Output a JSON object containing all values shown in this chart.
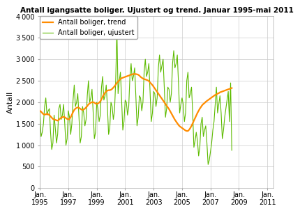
{
  "title": "Antall igangsatte boliger. Ujustert og trend. Januar 1995-mai 2011",
  "ylabel": "Antall",
  "ylim": [
    0,
    4000
  ],
  "yticks": [
    0,
    500,
    1000,
    1500,
    2000,
    2500,
    3000,
    3500,
    4000
  ],
  "color_trend": "#FF8C00",
  "color_unadjusted": "#5DBB00",
  "legend_trend": "Antall boliger, trend",
  "legend_unadjusted": "Antall boliger, ujustert",
  "bg_color": "#ffffff",
  "grid_color": "#cccccc",
  "x_tick_years": [
    1995,
    1997,
    1999,
    2001,
    2003,
    2005,
    2007,
    2009,
    2011
  ],
  "unadjusted": [
    1800,
    1200,
    1300,
    1500,
    1900,
    2100,
    1700,
    1800,
    1850,
    1300,
    900,
    1050,
    1700,
    1400,
    1050,
    1250,
    1850,
    1950,
    1600,
    1700,
    1950,
    1500,
    1000,
    1150,
    1800,
    1650,
    1250,
    1500,
    2050,
    2400,
    1900,
    2000,
    2200,
    1650,
    1050,
    1200,
    1900,
    1750,
    1450,
    1600,
    2150,
    2500,
    2000,
    2100,
    2300,
    1750,
    1150,
    1300,
    2000,
    1850,
    1550,
    1700,
    2350,
    2600,
    2050,
    2150,
    2400,
    1900,
    1250,
    1400,
    2000,
    1900,
    1600,
    1800,
    2500,
    3700,
    2200,
    2500,
    2700,
    2050,
    1350,
    1550,
    2050,
    2000,
    1700,
    1900,
    2600,
    2900,
    2500,
    2600,
    2800,
    2150,
    1450,
    1650,
    2150,
    2100,
    1800,
    2000,
    2700,
    3000,
    2600,
    2700,
    2900,
    2250,
    1550,
    1750,
    2250,
    2200,
    1900,
    2100,
    2800,
    3100,
    2700,
    2850,
    3000,
    2350,
    1650,
    1850,
    2350,
    2300,
    2000,
    2200,
    2900,
    3200,
    2800,
    2900,
    3100,
    2450,
    1750,
    1950,
    2100,
    1950,
    1550,
    1750,
    2500,
    2700,
    2100,
    2200,
    2350,
    1750,
    950,
    1100,
    1300,
    1100,
    750,
    950,
    1500,
    1650,
    1200,
    1350,
    1450,
    1050,
    550,
    650,
    850,
    1050,
    1350,
    1550,
    1950,
    2350,
    1750,
    1950,
    2150,
    1750,
    1150,
    1350,
    1650,
    1850,
    2050,
    2250,
    1550,
    2450,
    880
  ],
  "trend": [
    1800,
    1780,
    1750,
    1720,
    1710,
    1720,
    1730,
    1720,
    1700,
    1670,
    1640,
    1610,
    1600,
    1590,
    1580,
    1570,
    1590,
    1620,
    1640,
    1650,
    1660,
    1650,
    1630,
    1610,
    1600,
    1610,
    1650,
    1710,
    1770,
    1820,
    1850,
    1870,
    1880,
    1870,
    1850,
    1830,
    1820,
    1830,
    1850,
    1880,
    1910,
    1950,
    1970,
    1990,
    2000,
    2000,
    1990,
    1970,
    1960,
    1970,
    1990,
    2020,
    2070,
    2130,
    2180,
    2220,
    2250,
    2270,
    2280,
    2280,
    2290,
    2310,
    2340,
    2370,
    2410,
    2450,
    2480,
    2510,
    2540,
    2560,
    2570,
    2580,
    2590,
    2600,
    2610,
    2620,
    2630,
    2640,
    2650,
    2655,
    2660,
    2655,
    2650,
    2640,
    2620,
    2590,
    2570,
    2550,
    2540,
    2530,
    2520,
    2510,
    2490,
    2460,
    2430,
    2400,
    2360,
    2320,
    2280,
    2240,
    2200,
    2160,
    2120,
    2080,
    2040,
    2000,
    1960,
    1920,
    1880,
    1840,
    1790,
    1740,
    1690,
    1640,
    1590,
    1550,
    1510,
    1470,
    1440,
    1420,
    1400,
    1380,
    1360,
    1340,
    1330,
    1330,
    1360,
    1400,
    1450,
    1510,
    1570,
    1630,
    1690,
    1750,
    1800,
    1850,
    1890,
    1930,
    1960,
    1980,
    2010,
    2030,
    2050,
    2070,
    2090,
    2110,
    2130,
    2150,
    2170,
    2180,
    2200,
    2210,
    2230,
    2240,
    2250,
    2260,
    2270,
    2280,
    2290,
    2300,
    2310,
    2320,
    2330
  ]
}
